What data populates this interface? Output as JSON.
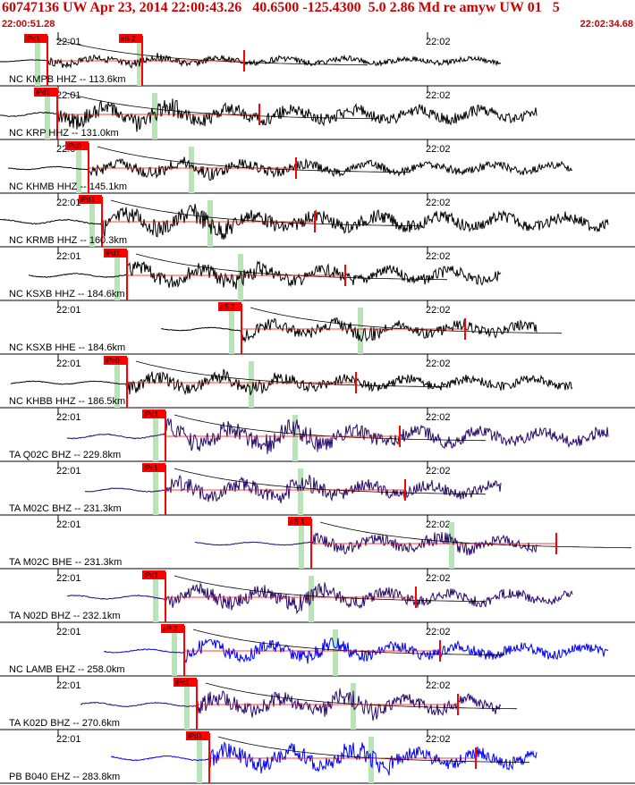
{
  "header": {
    "title": "60747136 UW Apr 23, 2014 22:00:43.26   40.6500 -125.4300  5.0 2.86 Md re amyw UW 01   5",
    "start_time": "22:00:51.28",
    "end_time": "22:02:34.68"
  },
  "colors": {
    "header": "#cc0000",
    "pick": "#ff0000",
    "window": "#b9e3b9",
    "trace_black": "#000000",
    "trace_indigo": "#2a0a6e",
    "trace_blue": "#0000ff"
  },
  "chart_data": {
    "type": "line",
    "x_unit": "time of day (hh:mm)",
    "x_range": [
      "22:00:51.28",
      "22:02:34.68"
    ],
    "tick_labels": [
      "22:01",
      "22:02"
    ],
    "traces": [
      {
        "label": "NC KMPB HHZ -- 113.6km",
        "pick": "iPc1",
        "pick2": "eS 2",
        "color": "black",
        "amp": 0.35,
        "onset": 0.075
      },
      {
        "label": "NC KRP HHZ -- 131.0km",
        "pick": "iPd1",
        "color": "black",
        "amp": 0.75,
        "onset": 0.09
      },
      {
        "label": "NC KHMB HHZ -- 145.1km",
        "pick": "iPc0",
        "color": "black",
        "amp": 0.55,
        "onset": 0.14
      },
      {
        "label": "NC KRMB HHZ -- 160.3km",
        "pick": "iPd1",
        "color": "black",
        "amp": 0.8,
        "onset": 0.16
      },
      {
        "label": "NC KSXB HHZ -- 184.6km",
        "pick": "iPd1",
        "color": "black",
        "amp": 0.7,
        "onset": 0.2
      },
      {
        "label": "NC KSXB HHE -- 184.6km",
        "pick": "eS 2",
        "color": "black",
        "amp": 0.6,
        "onset": 0.38
      },
      {
        "label": "NC KHBB HHZ -- 186.5km",
        "pick": "iPc0",
        "color": "black",
        "amp": 0.6,
        "onset": 0.2
      },
      {
        "label": "TA Q02C BHZ -- 229.8km",
        "pick": "iPd1",
        "color": "indigo",
        "amp": 0.85,
        "onset": 0.26
      },
      {
        "label": "TA M02C BHZ -- 231.3km",
        "pick": "iPc1",
        "color": "indigo",
        "amp": 0.7,
        "onset": 0.26
      },
      {
        "label": "TA M02C BHE -- 231.3km",
        "pick": "eS 1",
        "color": "indigo",
        "amp": 0.55,
        "onset": 0.49
      },
      {
        "label": "TA N02D BHZ -- 232.1km",
        "pick": "iPd1",
        "color": "indigo",
        "amp": 0.7,
        "onset": 0.26
      },
      {
        "label": "NC LAMB EHZ -- 258.0km",
        "pick": "eP 2",
        "color": "blue",
        "amp": 0.65,
        "onset": 0.29
      },
      {
        "label": "TA K02D BHZ -- 270.6km",
        "pick": "iPc1",
        "color": "indigo",
        "amp": 0.75,
        "onset": 0.31
      },
      {
        "label": "PB B040 EHZ -- 283.8km",
        "pick": "iPd1",
        "color": "blue",
        "amp": 0.8,
        "onset": 0.33
      }
    ]
  }
}
